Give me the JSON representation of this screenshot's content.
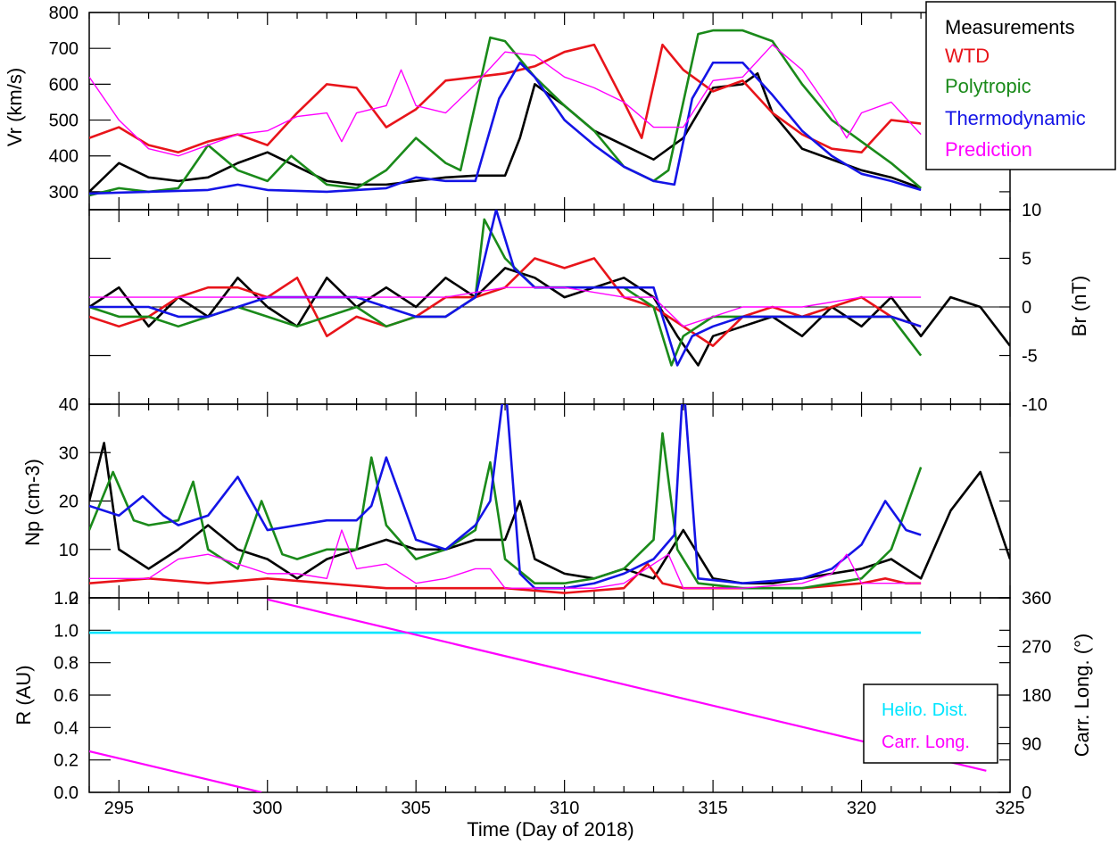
{
  "chart_data": [
    {
      "type": "line",
      "panel": "vr",
      "ylabel": "Vr (km/s)",
      "xlim": [
        294,
        325
      ],
      "ylim": [
        250,
        800
      ],
      "yticks": [
        300,
        400,
        500,
        600,
        700,
        800
      ],
      "legend": {
        "placement": "top-right",
        "entries": [
          "Measurements",
          "WTD",
          "Polytropic",
          "Thermodynamic",
          "Prediction"
        ]
      },
      "series": [
        {
          "name": "Measurements",
          "color": "#000000",
          "x": [
            294,
            295,
            296,
            297,
            298,
            299,
            300,
            301,
            302,
            303,
            304,
            305,
            306,
            307,
            308,
            308.5,
            309,
            310,
            311,
            312,
            313,
            314,
            315,
            316,
            316.5,
            317,
            318,
            319,
            320,
            321,
            322
          ],
          "y": [
            300,
            380,
            340,
            330,
            340,
            380,
            410,
            370,
            330,
            320,
            320,
            330,
            340,
            345,
            345,
            450,
            600,
            540,
            470,
            430,
            390,
            450,
            590,
            600,
            630,
            520,
            420,
            390,
            360,
            340,
            310
          ]
        },
        {
          "name": "WTD",
          "color": "#e8141a",
          "x": [
            294,
            295,
            296,
            297,
            298,
            299,
            300,
            301,
            302,
            303,
            304,
            305,
            306,
            307,
            308,
            309,
            310,
            311,
            312,
            312.6,
            313.3,
            314,
            315,
            316,
            317,
            318,
            319,
            320,
            321,
            322
          ],
          "y": [
            450,
            480,
            430,
            410,
            440,
            460,
            430,
            520,
            600,
            590,
            480,
            530,
            610,
            620,
            630,
            650,
            690,
            710,
            550,
            450,
            710,
            640,
            580,
            610,
            520,
            460,
            420,
            410,
            500,
            490
          ]
        },
        {
          "name": "Polytropic",
          "color": "#1a8a1a",
          "x": [
            294,
            295,
            296,
            297,
            298,
            299,
            300,
            300.8,
            302,
            303,
            304,
            305,
            306,
            306.5,
            307.5,
            308,
            309,
            310,
            311,
            312,
            313,
            313.5,
            314.5,
            315,
            316,
            317,
            318,
            319,
            320,
            321,
            322
          ],
          "y": [
            290,
            310,
            300,
            310,
            430,
            360,
            330,
            400,
            320,
            310,
            360,
            450,
            380,
            360,
            730,
            720,
            620,
            540,
            470,
            370,
            330,
            360,
            740,
            750,
            750,
            720,
            600,
            500,
            440,
            380,
            310
          ]
        },
        {
          "name": "Thermodynamic",
          "color": "#1414e6",
          "x": [
            294,
            296,
            298,
            299,
            300,
            302,
            304,
            305,
            306,
            307,
            307.8,
            308.5,
            309,
            310,
            311,
            312,
            313,
            313.7,
            314.3,
            315,
            316,
            317,
            318,
            319,
            320,
            321,
            322
          ],
          "y": [
            295,
            300,
            305,
            320,
            305,
            300,
            310,
            340,
            330,
            330,
            560,
            660,
            620,
            500,
            430,
            370,
            330,
            320,
            560,
            660,
            660,
            570,
            470,
            400,
            350,
            330,
            305
          ]
        },
        {
          "name": "Prediction",
          "color": "#ff00ff",
          "x": [
            294,
            295,
            296,
            297,
            298,
            299,
            300,
            301,
            302,
            302.5,
            303,
            304,
            304.5,
            305,
            306,
            307,
            308,
            309,
            310,
            311,
            312,
            313,
            314,
            315,
            316,
            317,
            318,
            319,
            319.5,
            320,
            321,
            322
          ],
          "y": [
            620,
            500,
            420,
            400,
            430,
            460,
            470,
            510,
            520,
            440,
            520,
            540,
            640,
            540,
            520,
            600,
            690,
            680,
            620,
            590,
            550,
            480,
            480,
            610,
            620,
            710,
            640,
            520,
            450,
            520,
            550,
            460
          ]
        }
      ]
    },
    {
      "type": "line",
      "panel": "br",
      "ylabel": "Br (nT)",
      "xlim": [
        294,
        325
      ],
      "ylim": [
        -10,
        10
      ],
      "yticks": [
        10,
        5,
        0,
        -5,
        -10
      ],
      "series": [
        {
          "name": "Measurements",
          "color": "#000000",
          "x": [
            294,
            295,
            296,
            297,
            298,
            299,
            300,
            301,
            302,
            303,
            304,
            305,
            306,
            307,
            308,
            309,
            310,
            311,
            312,
            313,
            313.8,
            314.5,
            315,
            316,
            317,
            318,
            319,
            320,
            321,
            322,
            323,
            324,
            325
          ],
          "y": [
            0,
            2,
            -2,
            1,
            -1,
            3,
            0,
            -2,
            3,
            0,
            2,
            0,
            3,
            1,
            4,
            3,
            1,
            2,
            3,
            1,
            -3,
            -6,
            -3,
            -2,
            -1,
            -3,
            0,
            -2,
            1,
            -3,
            1,
            0,
            -4
          ]
        },
        {
          "name": "WTD",
          "color": "#e8141a",
          "x": [
            294,
            295,
            296,
            297,
            298,
            299,
            300,
            301,
            302,
            303,
            304,
            305,
            306,
            307,
            308,
            309,
            310,
            311,
            312,
            313,
            314,
            315,
            316,
            317,
            318,
            319,
            320,
            321,
            322
          ],
          "y": [
            -1,
            -2,
            -1,
            1,
            2,
            2,
            1,
            3,
            -3,
            -1,
            -2,
            -1,
            1,
            1,
            2,
            5,
            4,
            5,
            1,
            0,
            -2,
            -4,
            -1,
            0,
            -1,
            0,
            1,
            -1,
            -2
          ]
        },
        {
          "name": "Polytropic",
          "color": "#1a8a1a",
          "x": [
            294,
            295,
            296,
            297,
            298,
            299,
            300,
            301,
            302,
            303,
            304,
            305,
            306,
            307,
            307.3,
            308,
            309,
            310,
            311,
            312,
            313,
            313.6,
            314,
            315,
            316,
            317,
            318,
            319,
            320,
            321,
            322
          ],
          "y": [
            0,
            -1,
            -1,
            -2,
            -1,
            0,
            -1,
            -2,
            -1,
            0,
            -2,
            -1,
            -1,
            1,
            9,
            5,
            2,
            2,
            2,
            2,
            0,
            -6,
            -3,
            -1,
            -1,
            -1,
            -1,
            -1,
            -1,
            -1,
            -5
          ]
        },
        {
          "name": "Thermodynamic",
          "color": "#1414e6",
          "x": [
            294,
            295,
            296,
            297,
            298,
            299,
            300,
            301,
            302,
            303,
            304,
            305,
            306,
            307,
            307.7,
            308.3,
            309,
            310,
            311,
            312,
            313,
            313.8,
            314.3,
            315,
            316,
            317,
            318,
            319,
            320,
            321,
            322
          ],
          "y": [
            0,
            0,
            0,
            -1,
            -1,
            0,
            1,
            1,
            1,
            1,
            0,
            -1,
            -1,
            1,
            10,
            4,
            2,
            2,
            2,
            2,
            2,
            -6,
            -3,
            -2,
            -1,
            -1,
            -1,
            -1,
            -1,
            -1,
            -2
          ]
        },
        {
          "name": "Prediction",
          "color": "#ff00ff",
          "x": [
            294,
            296,
            298,
            300,
            302,
            304,
            306,
            308,
            310,
            312,
            313,
            314,
            316,
            318,
            320,
            322
          ],
          "y": [
            1,
            1,
            1,
            1,
            1,
            1,
            1,
            2,
            2,
            1,
            1,
            -2,
            0,
            0,
            1,
            1
          ]
        }
      ]
    },
    {
      "type": "line",
      "panel": "np",
      "ylabel": "Np (cm-3)",
      "xlim": [
        294,
        325
      ],
      "ylim": [
        0,
        40
      ],
      "yticks": [
        0,
        10,
        20,
        30,
        40
      ],
      "series": [
        {
          "name": "Measurements",
          "color": "#000000",
          "x": [
            294,
            294.5,
            295,
            296,
            297,
            298,
            299,
            300,
            301,
            302,
            303,
            304,
            305,
            306,
            307,
            308,
            308.5,
            309,
            310,
            311,
            312,
            313,
            314,
            315,
            316,
            317,
            318,
            319,
            320,
            321,
            322,
            323,
            324,
            325
          ],
          "y": [
            20,
            32,
            10,
            6,
            10,
            15,
            10,
            8,
            4,
            8,
            10,
            12,
            10,
            10,
            12,
            12,
            20,
            8,
            5,
            4,
            6,
            4,
            14,
            4,
            3,
            3,
            4,
            5,
            6,
            8,
            4,
            18,
            26,
            8
          ]
        },
        {
          "name": "WTD",
          "color": "#e8141a",
          "x": [
            294,
            296,
            298,
            300,
            302,
            304,
            306,
            308,
            310,
            312,
            312.8,
            313.3,
            314,
            316,
            318,
            320,
            320.8,
            321.5,
            322
          ],
          "y": [
            3,
            4,
            3,
            4,
            3,
            2,
            2,
            2,
            1,
            2,
            7,
            3,
            2,
            2,
            2,
            3,
            4,
            3,
            3
          ]
        },
        {
          "name": "Polytropic",
          "color": "#1a8a1a",
          "x": [
            294,
            294.8,
            295.5,
            296,
            297,
            297.5,
            298,
            299,
            299.8,
            300.5,
            301,
            302,
            303,
            303.5,
            304,
            305,
            306,
            307,
            307.5,
            308,
            309,
            310,
            311,
            312,
            313,
            313.3,
            313.8,
            314.5,
            316,
            318,
            320,
            321,
            322
          ],
          "y": [
            14,
            26,
            16,
            15,
            16,
            24,
            10,
            6,
            20,
            9,
            8,
            10,
            10,
            29,
            15,
            8,
            10,
            14,
            28,
            8,
            3,
            3,
            4,
            6,
            12,
            34,
            10,
            3,
            2,
            2,
            4,
            10,
            27
          ]
        },
        {
          "name": "Thermodynamic",
          "color": "#1414e6",
          "x": [
            294,
            295,
            295.8,
            296.5,
            297,
            298,
            299,
            300,
            301,
            302,
            303,
            303.5,
            304,
            305,
            306,
            307,
            307.5,
            308,
            308.5,
            309,
            310,
            311,
            312,
            313,
            313.7,
            314,
            314.5,
            316,
            318,
            319,
            320,
            320.8,
            321.5,
            322
          ],
          "y": [
            19,
            17,
            21,
            17,
            15,
            17,
            25,
            14,
            15,
            16,
            16,
            19,
            29,
            12,
            10,
            15,
            20,
            45,
            5,
            2,
            2,
            3,
            5,
            8,
            13,
            45,
            4,
            3,
            4,
            6,
            11,
            20,
            14,
            13
          ]
        },
        {
          "name": "Prediction",
          "color": "#ff00ff",
          "x": [
            294,
            296,
            297,
            298,
            299,
            300,
            301,
            302,
            302.5,
            303,
            304,
            305,
            306,
            307,
            307.5,
            308,
            309,
            310,
            311,
            312,
            313,
            313.5,
            314,
            316,
            318,
            319,
            319.5,
            320,
            321,
            322
          ],
          "y": [
            4,
            4,
            8,
            9,
            7,
            5,
            5,
            4,
            14,
            6,
            7,
            3,
            4,
            6,
            6,
            2,
            2,
            2,
            2,
            3,
            7,
            9,
            2,
            2,
            3,
            5,
            9,
            3,
            3,
            3
          ]
        }
      ]
    },
    {
      "type": "line",
      "panel": "orbit",
      "ylabel": "R (AU)",
      "y2label": "Carr. Long. (°)",
      "xlabel": "Time (Day of 2018)",
      "xlim": [
        294,
        325
      ],
      "xticks": [
        295,
        300,
        305,
        310,
        315,
        320,
        325
      ],
      "ylim": [
        0,
        1.2
      ],
      "yticks": [
        0.0,
        0.2,
        0.4,
        0.6,
        0.8,
        1.0,
        1.2
      ],
      "y2lim": [
        0,
        360
      ],
      "y2ticks": [
        0,
        90,
        180,
        270,
        360
      ],
      "legend": {
        "placement": "bottom-right",
        "entries": [
          "Helio. Dist.",
          "Carr. Long."
        ]
      },
      "series": [
        {
          "name": "Helio. Dist.",
          "color": "#00e5ff",
          "axis": "left",
          "x": [
            294,
            322
          ],
          "y": [
            0.985,
            0.985
          ]
        },
        {
          "name": "Carr. Long.",
          "color": "#ff00ff",
          "axis": "right",
          "segments": [
            {
              "x": [
                294,
                299.8
              ],
              "y": [
                76,
                0
              ]
            },
            {
              "x": [
                300,
                324.2
              ],
              "y": [
                357,
                40
              ]
            }
          ]
        }
      ]
    }
  ],
  "labels": {
    "vr_ylabel": "Vr (km/s)",
    "br_ylabel": "Br (nT)",
    "np_ylabel": "Np (cm-3)",
    "r_ylabel": "R (AU)",
    "carr_ylabel": "Carr. Long. (°)",
    "xlabel": "Time (Day of 2018)",
    "legend_top": [
      "Measurements",
      "WTD",
      "Polytropic",
      "Thermodynamic",
      "Prediction"
    ],
    "legend_bottom": [
      "Helio. Dist.",
      "Carr. Long."
    ]
  }
}
